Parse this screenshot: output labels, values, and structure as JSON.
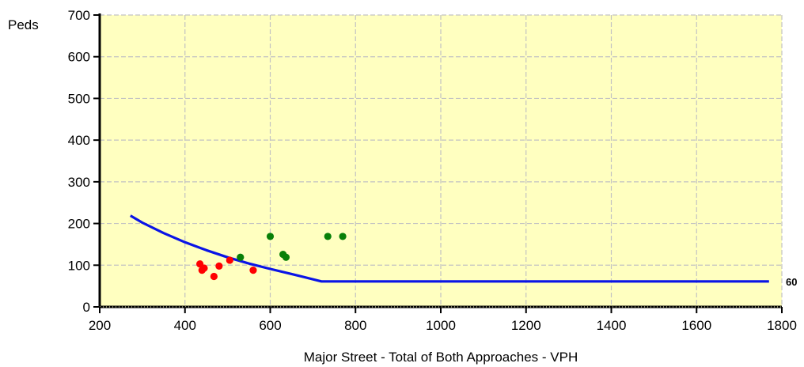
{
  "chart_data": {
    "type": "scatter",
    "title": "",
    "xlabel": "Major Street - Total of Both Approaches - VPH",
    "ylabel": "Peds",
    "xlim": [
      200,
      1800
    ],
    "ylim": [
      0,
      700
    ],
    "x_ticks": [
      200,
      400,
      600,
      800,
      1000,
      1200,
      1400,
      1600,
      1800
    ],
    "y_ticks": [
      0,
      100,
      200,
      300,
      400,
      500,
      600,
      700
    ],
    "grid": true,
    "plot_background": "#ffffc0",
    "threshold_line": {
      "color": "#0a14e6",
      "points": [
        [
          272,
          219
        ],
        [
          300,
          202
        ],
        [
          350,
          177
        ],
        [
          400,
          155
        ],
        [
          450,
          136
        ],
        [
          500,
          119
        ],
        [
          550,
          104
        ],
        [
          600,
          91
        ],
        [
          650,
          79
        ],
        [
          720,
          61
        ],
        [
          1770,
          61
        ]
      ],
      "end_label": "60"
    },
    "series": [
      {
        "color": "#ff0000",
        "points": [
          [
            435,
            103
          ],
          [
            440,
            88
          ],
          [
            445,
            93
          ],
          [
            468,
            73
          ],
          [
            480,
            98
          ],
          [
            505,
            112
          ],
          [
            560,
            88
          ]
        ]
      },
      {
        "color": "#088008",
        "points": [
          [
            530,
            119
          ],
          [
            600,
            169
          ],
          [
            630,
            126
          ],
          [
            637,
            119
          ],
          [
            735,
            169
          ],
          [
            770,
            169
          ]
        ]
      }
    ]
  }
}
